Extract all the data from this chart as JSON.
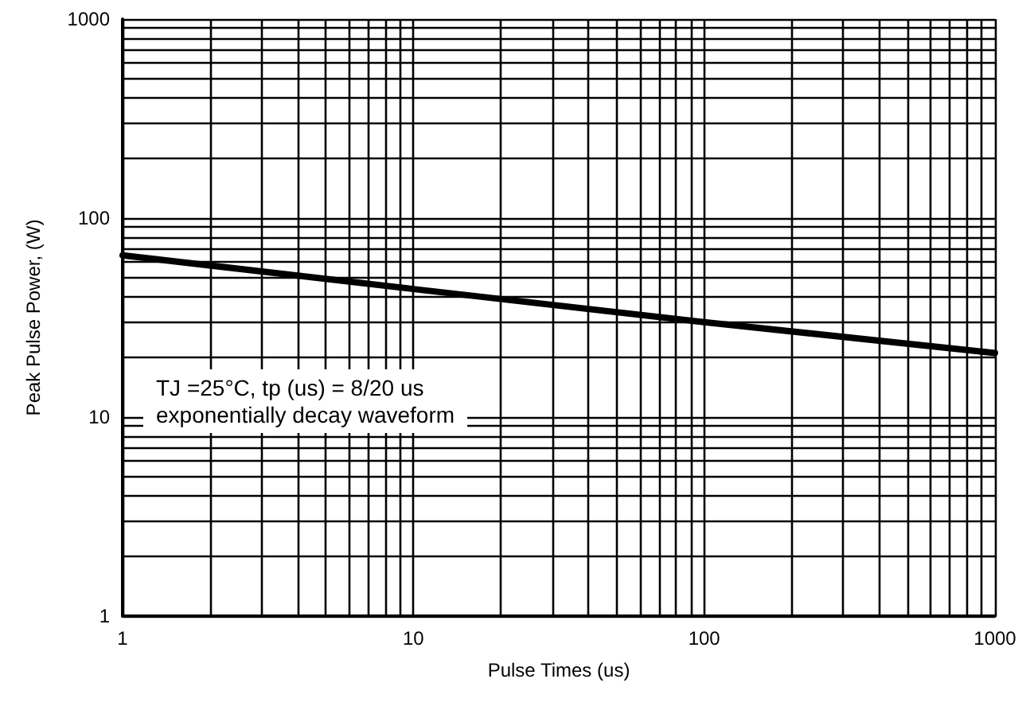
{
  "chart_data": {
    "type": "line",
    "xlabel": "Pulse Times (us)",
    "ylabel": "Peak Pulse Power, (W)",
    "annotations": [
      "TJ =25°C, tp (us) = 8/20 us\nexponentially decay waveform"
    ],
    "x": [
      1,
      10,
      100,
      1000
    ],
    "series": [
      {
        "color": "#000000",
        "values": [
          65,
          44,
          30,
          21
        ]
      }
    ],
    "log": "xy",
    "grid": true,
    "marker": "none",
    "line_style": "solid",
    "xlim": [
      1,
      1000
    ],
    "ylim": [
      1,
      1000
    ],
    "xticks": [
      1,
      {
        "value": 2,
        "label": null
      },
      {
        "value": 3,
        "label": null
      },
      {
        "value": 4,
        "label": null
      },
      {
        "value": 5,
        "label": null
      },
      {
        "value": 6,
        "label": null
      },
      {
        "value": 7,
        "label": null
      },
      {
        "value": 8,
        "label": null
      },
      {
        "value": 9,
        "label": null
      },
      10,
      {
        "value": 20,
        "label": null
      },
      {
        "value": 30,
        "label": null
      },
      {
        "value": 40,
        "label": null
      },
      {
        "value": 50,
        "label": null
      },
      {
        "value": 60,
        "label": null
      },
      {
        "value": 70,
        "label": null
      },
      {
        "value": 80,
        "label": null
      },
      {
        "value": 90,
        "label": null
      },
      100,
      {
        "value": 200,
        "label": null
      },
      {
        "value": 300,
        "label": null
      },
      {
        "value": 400,
        "label": null
      },
      {
        "value": 500,
        "label": null
      },
      {
        "value": 600,
        "label": null
      },
      {
        "value": 700,
        "label": null
      },
      {
        "value": 800,
        "label": null
      },
      {
        "value": 900,
        "label": null
      },
      1000
    ],
    "yticks": [
      1,
      {
        "value": 2,
        "label": null
      },
      {
        "value": 3,
        "label": null
      },
      {
        "value": 4,
        "label": null
      },
      {
        "value": 5,
        "label": null
      },
      {
        "value": 6,
        "label": null
      },
      {
        "value": 7,
        "label": null
      },
      {
        "value": 8,
        "label": null
      },
      {
        "value": 9,
        "label": null
      },
      10,
      {
        "value": 20,
        "label": null
      },
      {
        "value": 30,
        "label": null
      },
      {
        "value": 40,
        "label": null
      },
      {
        "value": 50,
        "label": null
      },
      {
        "value": 60,
        "label": null
      },
      {
        "value": 70,
        "label": null
      },
      {
        "value": 80,
        "label": null
      },
      {
        "value": 90,
        "label": null
      },
      100,
      {
        "value": 200,
        "label": null
      },
      {
        "value": 300,
        "label": null
      },
      {
        "value": 400,
        "label": null
      },
      {
        "value": 500,
        "label": null
      },
      {
        "value": 600,
        "label": null
      },
      {
        "value": 700,
        "label": null
      },
      {
        "value": 800,
        "label": null
      },
      {
        "value": 900,
        "label": null
      },
      1000
    ]
  }
}
